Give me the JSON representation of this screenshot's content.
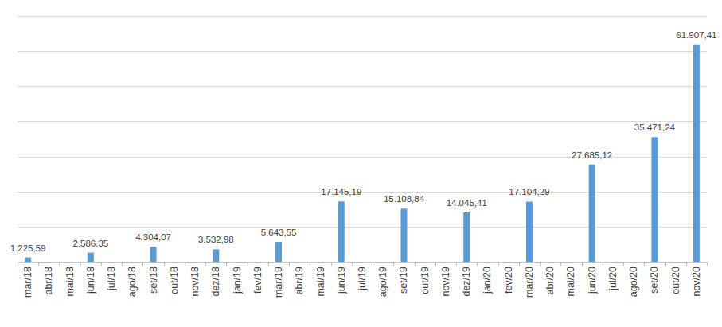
{
  "chart_data": {
    "type": "bar",
    "categories": [
      "mar/18",
      "abr/18",
      "mai/18",
      "jun/18",
      "jul/18",
      "ago/18",
      "set/18",
      "out/18",
      "nov/18",
      "dez/18",
      "jan/19",
      "fev/19",
      "mar/19",
      "abr/19",
      "mai/19",
      "jun/19",
      "jul/19",
      "ago/19",
      "set/19",
      "out/19",
      "nov/19",
      "dez/19",
      "jan/20",
      "fev/20",
      "mar/20",
      "abr/20",
      "mai/20",
      "jun/20",
      "jul/20",
      "ago/20",
      "set/20",
      "out/20",
      "nov/20"
    ],
    "values": [
      1225.59,
      null,
      null,
      2586.35,
      null,
      null,
      4304.07,
      null,
      null,
      3532.98,
      null,
      null,
      5643.55,
      null,
      null,
      17145.19,
      null,
      null,
      15108.84,
      null,
      null,
      14045.41,
      null,
      null,
      17104.29,
      null,
      null,
      27685.12,
      null,
      null,
      35471.24,
      null,
      61907.41
    ],
    "value_labels": [
      "1.225,59",
      null,
      null,
      "2.586,35",
      null,
      null,
      "4.304,07",
      null,
      null,
      "3.532,98",
      null,
      null,
      "5.643,55",
      null,
      null,
      "17.145,19",
      null,
      null,
      "15.108,84",
      null,
      null,
      "14.045,41",
      null,
      null,
      "17.104,29",
      null,
      null,
      "27.685,12",
      null,
      null,
      "35.471,24",
      null,
      "61.907,41"
    ],
    "color": "#5b9bd5",
    "ylim": [
      0,
      70000
    ],
    "yticks": [
      0,
      10000,
      20000,
      30000,
      40000,
      50000,
      60000,
      70000
    ],
    "grid": true,
    "data_labels": true,
    "tick_labels": "x"
  }
}
